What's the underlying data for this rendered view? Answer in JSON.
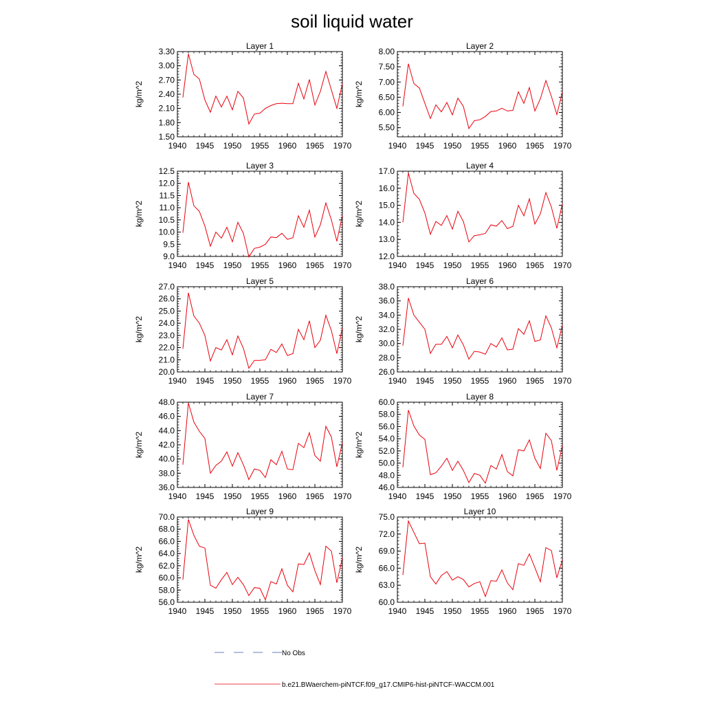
{
  "figure": {
    "title": "soil liquid water"
  },
  "legend": {
    "obs_label": "No Obs",
    "obs_color": "#3355aa",
    "model_label": "b.e21.BWaerchem-piNTCF.f09_g17.CMIP6-hist-piNTCF-WACCM.001",
    "model_color": "#e8000b"
  },
  "chart_data": [
    {
      "type": "line",
      "title": "Layer 1",
      "xlabel": "",
      "ylabel": "kg/m^2",
      "xlim": [
        1940,
        1970
      ],
      "ylim": [
        1.5,
        3.3
      ],
      "xticks": [
        "1940",
        "1945",
        "1950",
        "1955",
        "1960",
        "1965",
        "1970"
      ],
      "yticks": [
        "1.50",
        "1.80",
        "2.10",
        "2.40",
        "2.70",
        "3.00",
        "3.30"
      ],
      "series": [
        {
          "name": "b.e21.BWaerchem-piNTCF.f09_g17.CMIP6-hist-piNTCF-WACCM.001",
          "x": [
            1941,
            1942,
            1943,
            1944,
            1945,
            1946,
            1947,
            1948,
            1949,
            1950,
            1951,
            1952,
            1953,
            1954,
            1955,
            1956,
            1957,
            1958,
            1959,
            1960,
            1961,
            1962,
            1963,
            1964,
            1965,
            1966,
            1967,
            1968,
            1969,
            1970
          ],
          "values": [
            2.33,
            3.25,
            2.82,
            2.72,
            2.28,
            2.02,
            2.36,
            2.13,
            2.36,
            2.07,
            2.46,
            2.32,
            1.77,
            1.98,
            2.0,
            2.1,
            2.16,
            2.2,
            2.21,
            2.2,
            2.2,
            2.63,
            2.3,
            2.71,
            2.17,
            2.46,
            2.88,
            2.49,
            2.1,
            2.62
          ]
        }
      ]
    },
    {
      "type": "line",
      "title": "Layer 2",
      "xlabel": "",
      "ylabel": "kg/m^2",
      "xlim": [
        1940,
        1970
      ],
      "ylim": [
        5.2,
        8.0
      ],
      "xticks": [
        "1940",
        "1945",
        "1950",
        "1955",
        "1960",
        "1965",
        "1970"
      ],
      "yticks": [
        "5.50",
        "6.00",
        "6.50",
        "7.00",
        "7.50",
        "8.00"
      ],
      "series": [
        {
          "name": "b.e21.BWaerchem-piNTCF.f09_g17.CMIP6-hist-piNTCF-WACCM.001",
          "x": [
            1941,
            1942,
            1943,
            1944,
            1945,
            1946,
            1947,
            1948,
            1949,
            1950,
            1951,
            1952,
            1953,
            1954,
            1955,
            1956,
            1957,
            1958,
            1959,
            1960,
            1961,
            1962,
            1963,
            1964,
            1965,
            1966,
            1967,
            1968,
            1969,
            1970
          ],
          "values": [
            6.2,
            7.6,
            6.95,
            6.8,
            6.3,
            5.8,
            6.25,
            6.02,
            6.33,
            5.92,
            6.47,
            6.2,
            5.47,
            5.73,
            5.76,
            5.87,
            6.03,
            6.05,
            6.14,
            6.05,
            6.07,
            6.68,
            6.3,
            6.82,
            6.05,
            6.45,
            7.05,
            6.53,
            5.93,
            6.68
          ]
        }
      ]
    },
    {
      "type": "line",
      "title": "Layer 3",
      "xlabel": "",
      "ylabel": "kg/m^2",
      "xlim": [
        1940,
        1970
      ],
      "ylim": [
        9.0,
        12.5
      ],
      "xticks": [
        "1940",
        "1945",
        "1950",
        "1955",
        "1960",
        "1965",
        "1970"
      ],
      "yticks": [
        "9.0",
        "9.5",
        "10.0",
        "10.5",
        "11.0",
        "11.5",
        "12.0",
        "12.5"
      ],
      "series": [
        {
          "name": "b.e21.BWaerchem-piNTCF.f09_g17.CMIP6-hist-piNTCF-WACCM.001",
          "x": [
            1941,
            1942,
            1943,
            1944,
            1945,
            1946,
            1947,
            1948,
            1949,
            1950,
            1951,
            1952,
            1953,
            1954,
            1955,
            1956,
            1957,
            1958,
            1959,
            1960,
            1961,
            1962,
            1963,
            1964,
            1965,
            1966,
            1967,
            1968,
            1969,
            1970
          ],
          "values": [
            9.97,
            12.05,
            11.08,
            10.85,
            10.25,
            9.42,
            10.0,
            9.75,
            10.2,
            9.6,
            10.4,
            9.95,
            8.98,
            9.33,
            9.38,
            9.5,
            9.8,
            9.77,
            9.95,
            9.7,
            9.77,
            10.67,
            10.2,
            10.9,
            9.8,
            10.3,
            11.2,
            10.5,
            9.62,
            10.7
          ]
        }
      ]
    },
    {
      "type": "line",
      "title": "Layer 4",
      "xlabel": "",
      "ylabel": "kg/m^2",
      "xlim": [
        1940,
        1970
      ],
      "ylim": [
        12.0,
        17.0
      ],
      "xticks": [
        "1940",
        "1945",
        "1950",
        "1955",
        "1960",
        "1965",
        "1970"
      ],
      "yticks": [
        "12.0",
        "13.0",
        "14.0",
        "15.0",
        "16.0",
        "17.0"
      ],
      "series": [
        {
          "name": "b.e21.BWaerchem-piNTCF.f09_g17.CMIP6-hist-piNTCF-WACCM.001",
          "x": [
            1941,
            1942,
            1943,
            1944,
            1945,
            1946,
            1947,
            1948,
            1949,
            1950,
            1951,
            1952,
            1953,
            1954,
            1955,
            1956,
            1957,
            1958,
            1959,
            1960,
            1961,
            1962,
            1963,
            1964,
            1965,
            1966,
            1967,
            1968,
            1969,
            1970
          ],
          "values": [
            14.0,
            16.9,
            15.7,
            15.35,
            14.55,
            13.3,
            14.05,
            13.82,
            14.4,
            13.6,
            14.65,
            14.05,
            12.85,
            13.22,
            13.27,
            13.35,
            13.85,
            13.78,
            14.1,
            13.63,
            13.77,
            15.0,
            14.38,
            15.38,
            13.9,
            14.5,
            15.75,
            14.9,
            13.65,
            15.1
          ]
        }
      ]
    },
    {
      "type": "line",
      "title": "Layer 5",
      "xlabel": "",
      "ylabel": "kg/m^2",
      "xlim": [
        1940,
        1970
      ],
      "ylim": [
        20.0,
        27.0
      ],
      "xticks": [
        "1940",
        "1945",
        "1950",
        "1955",
        "1960",
        "1965",
        "1970"
      ],
      "yticks": [
        "20.0",
        "21.0",
        "22.0",
        "23.0",
        "24.0",
        "25.0",
        "26.0",
        "27.0"
      ],
      "series": [
        {
          "name": "b.e21.BWaerchem-piNTCF.f09_g17.CMIP6-hist-piNTCF-WACCM.001",
          "x": [
            1941,
            1942,
            1943,
            1944,
            1945,
            1946,
            1947,
            1948,
            1949,
            1950,
            1951,
            1952,
            1953,
            1954,
            1955,
            1956,
            1957,
            1958,
            1959,
            1960,
            1961,
            1962,
            1963,
            1964,
            1965,
            1966,
            1967,
            1968,
            1969,
            1970
          ],
          "values": [
            21.9,
            26.5,
            24.6,
            24.0,
            23.0,
            20.9,
            22.0,
            21.8,
            22.65,
            21.4,
            22.95,
            21.95,
            20.3,
            20.95,
            20.95,
            21.0,
            21.85,
            21.6,
            22.3,
            21.35,
            21.5,
            23.5,
            22.65,
            24.2,
            22.0,
            22.6,
            24.65,
            23.4,
            21.5,
            23.6
          ]
        }
      ]
    },
    {
      "type": "line",
      "title": "Layer 6",
      "xlabel": "",
      "ylabel": "kg/m^2",
      "xlim": [
        1940,
        1970
      ],
      "ylim": [
        26.0,
        38.0
      ],
      "xticks": [
        "1940",
        "1945",
        "1950",
        "1955",
        "1960",
        "1965",
        "1970"
      ],
      "yticks": [
        "26.0",
        "28.0",
        "30.0",
        "32.0",
        "34.0",
        "36.0",
        "38.0"
      ],
      "series": [
        {
          "name": "b.e21.BWaerchem-piNTCF.f09_g17.CMIP6-hist-piNTCF-WACCM.001",
          "x": [
            1941,
            1942,
            1943,
            1944,
            1945,
            1946,
            1947,
            1948,
            1949,
            1950,
            1951,
            1952,
            1953,
            1954,
            1955,
            1956,
            1957,
            1958,
            1959,
            1960,
            1961,
            1962,
            1963,
            1964,
            1965,
            1966,
            1967,
            1968,
            1969,
            1970
          ],
          "values": [
            29.7,
            36.4,
            34.0,
            33.0,
            32.0,
            28.6,
            29.9,
            29.9,
            31.0,
            29.4,
            31.2,
            29.8,
            27.8,
            28.9,
            28.8,
            28.5,
            30.0,
            29.5,
            30.8,
            29.1,
            29.2,
            32.1,
            31.3,
            33.2,
            30.3,
            30.5,
            33.9,
            32.2,
            29.4,
            32.6
          ]
        }
      ]
    },
    {
      "type": "line",
      "title": "Layer 7",
      "xlabel": "",
      "ylabel": "kg/m^2",
      "xlim": [
        1940,
        1970
      ],
      "ylim": [
        36.0,
        48.0
      ],
      "xticks": [
        "1940",
        "1945",
        "1950",
        "1955",
        "1960",
        "1965",
        "1970"
      ],
      "yticks": [
        "36.0",
        "38.0",
        "40.0",
        "42.0",
        "44.0",
        "46.0",
        "48.0"
      ],
      "series": [
        {
          "name": "b.e21.BWaerchem-piNTCF.f09_g17.CMIP6-hist-piNTCF-WACCM.001",
          "x": [
            1941,
            1942,
            1943,
            1944,
            1945,
            1946,
            1947,
            1948,
            1949,
            1950,
            1951,
            1952,
            1953,
            1954,
            1955,
            1956,
            1957,
            1958,
            1959,
            1960,
            1961,
            1962,
            1963,
            1964,
            1965,
            1966,
            1967,
            1968,
            1969,
            1970
          ],
          "values": [
            39.2,
            47.9,
            45.2,
            43.9,
            42.9,
            38.0,
            39.1,
            39.7,
            41.0,
            39.0,
            40.9,
            39.2,
            37.1,
            38.6,
            38.4,
            37.4,
            39.9,
            39.2,
            41.1,
            38.6,
            38.5,
            42.2,
            41.6,
            43.7,
            40.5,
            39.7,
            44.6,
            43.1,
            38.9,
            42.3
          ]
        }
      ]
    },
    {
      "type": "line",
      "title": "Layer 8",
      "xlabel": "",
      "ylabel": "kg/m^2",
      "xlim": [
        1940,
        1970
      ],
      "ylim": [
        46.0,
        60.0
      ],
      "xticks": [
        "1940",
        "1945",
        "1950",
        "1955",
        "1960",
        "1965",
        "1970"
      ],
      "yticks": [
        "46.0",
        "48.0",
        "50.0",
        "52.0",
        "54.0",
        "56.0",
        "58.0",
        "60.0"
      ],
      "series": [
        {
          "name": "b.e21.BWaerchem-piNTCF.f09_g17.CMIP6-hist-piNTCF-WACCM.001",
          "x": [
            1941,
            1942,
            1943,
            1944,
            1945,
            1946,
            1947,
            1948,
            1949,
            1950,
            1951,
            1952,
            1953,
            1954,
            1955,
            1956,
            1957,
            1958,
            1959,
            1960,
            1961,
            1962,
            1963,
            1964,
            1965,
            1966,
            1967,
            1968,
            1969,
            1970
          ],
          "values": [
            49.3,
            58.7,
            56.1,
            54.6,
            53.9,
            48.1,
            48.4,
            49.5,
            50.8,
            48.8,
            50.3,
            48.8,
            46.8,
            48.3,
            48.0,
            46.7,
            49.6,
            49.0,
            51.4,
            48.6,
            47.9,
            52.2,
            52.0,
            53.8,
            50.8,
            49.1,
            54.9,
            53.7,
            48.8,
            52.9
          ]
        }
      ]
    },
    {
      "type": "line",
      "title": "Layer 9",
      "xlabel": "",
      "ylabel": "kg/m^2",
      "xlim": [
        1940,
        1970
      ],
      "ylim": [
        56.0,
        70.0
      ],
      "xticks": [
        "1940",
        "1945",
        "1950",
        "1955",
        "1960",
        "1965",
        "1970"
      ],
      "yticks": [
        "56.0",
        "58.0",
        "60.0",
        "62.0",
        "64.0",
        "66.0",
        "68.0",
        "70.0"
      ],
      "series": [
        {
          "name": "b.e21.BWaerchem-piNTCF.f09_g17.CMIP6-hist-piNTCF-WACCM.001",
          "x": [
            1941,
            1942,
            1943,
            1944,
            1945,
            1946,
            1947,
            1948,
            1949,
            1950,
            1951,
            1952,
            1953,
            1954,
            1955,
            1956,
            1957,
            1958,
            1959,
            1960,
            1961,
            1962,
            1963,
            1964,
            1965,
            1966,
            1967,
            1968,
            1969,
            1970
          ],
          "values": [
            59.7,
            69.6,
            67.0,
            65.2,
            64.9,
            58.8,
            58.3,
            59.7,
            60.9,
            58.9,
            60.1,
            58.9,
            57.1,
            58.4,
            58.3,
            56.4,
            59.4,
            59.0,
            61.5,
            58.8,
            57.7,
            62.3,
            62.2,
            64.1,
            61.2,
            58.9,
            65.2,
            64.4,
            59.2,
            63.3
          ]
        }
      ]
    },
    {
      "type": "line",
      "title": "Layer 10",
      "xlabel": "",
      "ylabel": "kg/m^2",
      "xlim": [
        1940,
        1970
      ],
      "ylim": [
        60.0,
        75.0
      ],
      "xticks": [
        "1940",
        "1945",
        "1950",
        "1955",
        "1960",
        "1965",
        "1970"
      ],
      "yticks": [
        "60.0",
        "63.0",
        "66.0",
        "69.0",
        "72.0",
        "75.0"
      ],
      "series": [
        {
          "name": "b.e21.BWaerchem-piNTCF.f09_g17.CMIP6-hist-piNTCF-WACCM.001",
          "x": [
            1941,
            1942,
            1943,
            1944,
            1945,
            1946,
            1947,
            1948,
            1949,
            1950,
            1951,
            1952,
            1953,
            1954,
            1955,
            1956,
            1957,
            1958,
            1959,
            1960,
            1961,
            1962,
            1963,
            1964,
            1965,
            1966,
            1967,
            1968,
            1969,
            1970
          ],
          "values": [
            64.8,
            74.3,
            72.3,
            70.3,
            70.4,
            64.5,
            63.2,
            64.7,
            65.4,
            63.9,
            64.5,
            64.0,
            62.7,
            63.3,
            63.6,
            61.0,
            63.8,
            63.7,
            65.7,
            63.4,
            62.2,
            66.8,
            66.5,
            68.5,
            66.1,
            63.6,
            69.6,
            69.1,
            64.3,
            67.5
          ]
        }
      ]
    }
  ]
}
